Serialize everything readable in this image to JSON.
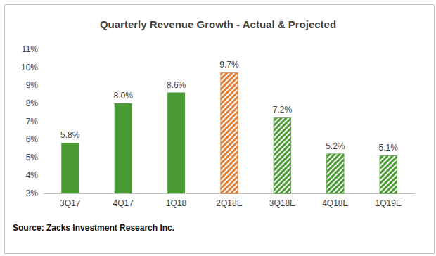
{
  "chart_data": {
    "type": "bar",
    "title": "Quarterly Revenue Growth - Actual & Projected",
    "categories": [
      "3Q17",
      "4Q17",
      "1Q18",
      "2Q18E",
      "3Q18E",
      "4Q18E",
      "1Q19E"
    ],
    "values": [
      5.8,
      8.0,
      8.6,
      9.7,
      7.2,
      5.2,
      5.1
    ],
    "value_labels": [
      "5.8%",
      "8.0%",
      "8.6%",
      "9.7%",
      "7.2%",
      "5.2%",
      "5.1%"
    ],
    "colors": [
      "#4b9b35",
      "#4b9b35",
      "#4b9b35",
      "#e0803a",
      "#4b9b35",
      "#4b9b35",
      "#4b9b35"
    ],
    "data_labels": true,
    "grid": false,
    "ylim": [
      3,
      11
    ],
    "yticks": [
      {
        "value": 3,
        "label": "3%"
      },
      {
        "value": 4,
        "label": "4%"
      },
      {
        "value": 5,
        "label": "5%"
      },
      {
        "value": 6,
        "label": "6%"
      },
      {
        "value": 7,
        "label": "7%"
      },
      {
        "value": 8,
        "label": "8%"
      },
      {
        "value": 9,
        "label": "9%"
      },
      {
        "value": 10,
        "label": "10%"
      },
      {
        "value": 11,
        "label": "11%"
      }
    ],
    "annotations": [
      "Source: Zacks Investment Research Inc."
    ]
  }
}
